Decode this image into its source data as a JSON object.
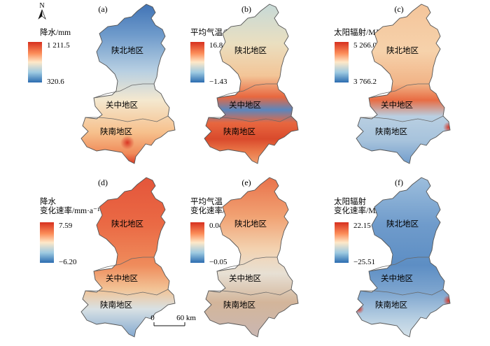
{
  "north_label": "N",
  "scale_bar": {
    "start": "0",
    "end": "60 km"
  },
  "regions": {
    "north": "陕北地区",
    "central": "关中地区",
    "south": "陕南地区"
  },
  "panels": [
    {
      "label": "(a)",
      "legend_title": [
        "降水/mm"
      ],
      "max": "1 211.5",
      "min": "320.6",
      "variable": "precipitation"
    },
    {
      "label": "(b)",
      "legend_title": [
        "平均气温/°C"
      ],
      "max": "16.8",
      "min": "−1.43",
      "variable": "temperature"
    },
    {
      "label": "(c)",
      "legend_title": [
        "太阳辐射/MJ·m⁻²"
      ],
      "max": "5 266.0",
      "min": "3 766.2",
      "variable": "solar-radiation"
    },
    {
      "label": "(d)",
      "legend_title": [
        "降水",
        "变化速率/mm·a⁻¹"
      ],
      "max": "7.59",
      "min": "−6.20",
      "variable": "precipitation-trend"
    },
    {
      "label": "(e)",
      "legend_title": [
        "平均气温",
        "变化速率/°C·a⁻¹"
      ],
      "max": "0.04",
      "min": "−0.05",
      "variable": "temperature-trend"
    },
    {
      "label": "(f)",
      "legend_title": [
        "太阳辐射",
        "变化速率/MJ·m⁻²·a⁻¹"
      ],
      "max": "22.15",
      "min": "−25.51",
      "variable": "radiation-trend"
    }
  ],
  "colors": {
    "high": "#d7301f",
    "mid_high": "#fc8d59",
    "mid": "#fee8c8",
    "mid_low": "#9ecae1",
    "low": "#2b6cb0",
    "boundary": "#555555"
  }
}
